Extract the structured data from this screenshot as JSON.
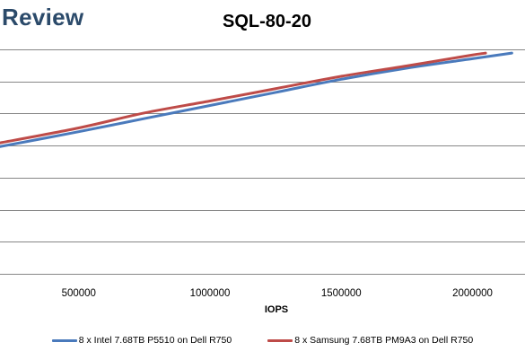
{
  "brand": "Review",
  "chart_data": {
    "type": "line",
    "title": "SQL-80-20",
    "xlabel": "IOPS",
    "ylabel": "",
    "xlim": [
      200000,
      2200000
    ],
    "ylim": [
      0,
      6
    ],
    "x_ticks": [
      500000,
      1000000,
      1500000,
      2000000
    ],
    "grid": true,
    "legend_position": "bottom",
    "series": [
      {
        "name": "8 x Intel 7.68TB P5510 on Dell R750",
        "color": "#4a7abc",
        "x": [
          200000,
          500000,
          750000,
          1000000,
          1250000,
          1500000,
          1750000,
          2000000,
          2150000
        ],
        "y": [
          3.4,
          3.8,
          4.15,
          4.5,
          4.85,
          5.2,
          5.5,
          5.75,
          5.9
        ]
      },
      {
        "name": "8 x Samsung 7.68TB PM9A3 on Dell R750",
        "color": "#be4b48",
        "x": [
          200000,
          500000,
          750000,
          1000000,
          1250000,
          1500000,
          1750000,
          2000000,
          2050000
        ],
        "y": [
          3.5,
          3.9,
          4.3,
          4.62,
          4.95,
          5.28,
          5.56,
          5.85,
          5.9
        ]
      }
    ]
  }
}
